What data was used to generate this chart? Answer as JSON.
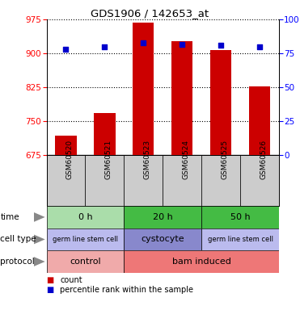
{
  "title": "GDS1906 / 142653_at",
  "samples": [
    "GSM60520",
    "GSM60521",
    "GSM60523",
    "GSM60524",
    "GSM60525",
    "GSM60526"
  ],
  "counts": [
    718,
    768,
    968,
    928,
    908,
    828
  ],
  "percentile_ranks": [
    78,
    80,
    83,
    82,
    81,
    80
  ],
  "ylim_left": [
    675,
    975
  ],
  "ylim_right": [
    0,
    100
  ],
  "yticks_left": [
    675,
    750,
    825,
    900,
    975
  ],
  "yticks_right": [
    0,
    25,
    50,
    75,
    100
  ],
  "bar_color": "#cc0000",
  "dot_color": "#0000cc",
  "bar_bottom": 675,
  "time_data": [
    {
      "label": "0 h",
      "start": 0,
      "end": 2,
      "color": "#aaddaa"
    },
    {
      "label": "20 h",
      "start": 2,
      "end": 4,
      "color": "#44bb44"
    },
    {
      "label": "50 h",
      "start": 4,
      "end": 6,
      "color": "#44bb44"
    }
  ],
  "cell_data": [
    {
      "label": "germ line stem cell",
      "start": 0,
      "end": 2,
      "color": "#bbbbee",
      "fontsize": 6
    },
    {
      "label": "cystocyte",
      "start": 2,
      "end": 4,
      "color": "#8888cc",
      "fontsize": 8
    },
    {
      "label": "germ line stem cell",
      "start": 4,
      "end": 6,
      "color": "#bbbbee",
      "fontsize": 6
    }
  ],
  "prot_data": [
    {
      "label": "control",
      "start": 0,
      "end": 2,
      "color": "#f0aaaa"
    },
    {
      "label": "bam induced",
      "start": 2,
      "end": 6,
      "color": "#ee7777"
    }
  ],
  "row_names": [
    "time",
    "cell type",
    "protocol"
  ],
  "legend_items": [
    {
      "color": "#cc0000",
      "label": "count"
    },
    {
      "color": "#0000cc",
      "label": "percentile rank within the sample"
    }
  ],
  "sample_bg": "#cccccc",
  "spine_color": "#000000"
}
